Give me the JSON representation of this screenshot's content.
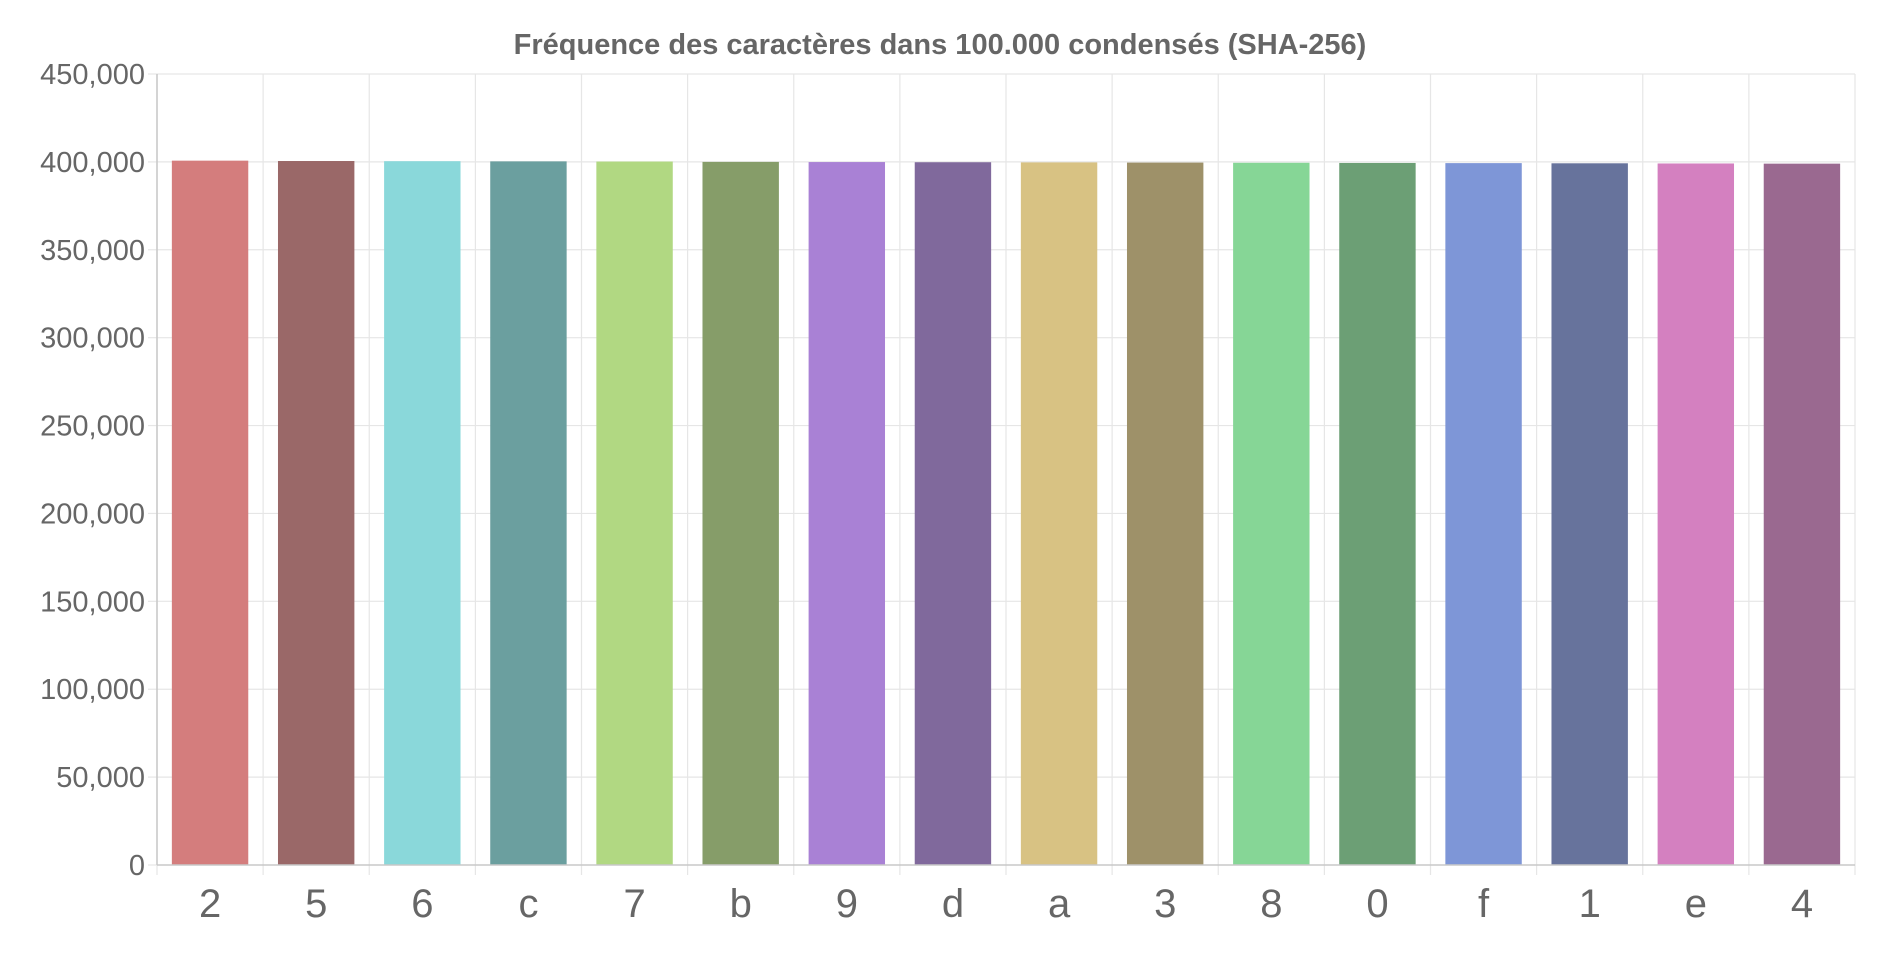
{
  "chart_data": {
    "type": "bar",
    "title": "Fréquence des caractères dans 100.000 condensés (SHA-256)",
    "xlabel": "",
    "ylabel": "",
    "categories": [
      "2",
      "5",
      "6",
      "c",
      "7",
      "b",
      "9",
      "d",
      "a",
      "3",
      "8",
      "0",
      "f",
      "1",
      "e",
      "4"
    ],
    "values": [
      400700,
      400500,
      400400,
      400300,
      400200,
      400000,
      399900,
      399800,
      399700,
      399600,
      399500,
      399400,
      399300,
      399200,
      399100,
      399000
    ],
    "colors": [
      "#d47d7d",
      "#9a6868",
      "#8ad8da",
      "#6b9f9f",
      "#b1d882",
      "#869d69",
      "#a981d5",
      "#80699c",
      "#d8c283",
      "#9e9169",
      "#86d696",
      "#6c9f75",
      "#7e96d7",
      "#67739c",
      "#d480c0",
      "#9a6990"
    ],
    "ylim": [
      0,
      450000
    ],
    "y_ticks": [
      0,
      50000,
      100000,
      150000,
      200000,
      250000,
      300000,
      350000,
      400000,
      450000
    ],
    "grid": true,
    "legend": "none"
  }
}
